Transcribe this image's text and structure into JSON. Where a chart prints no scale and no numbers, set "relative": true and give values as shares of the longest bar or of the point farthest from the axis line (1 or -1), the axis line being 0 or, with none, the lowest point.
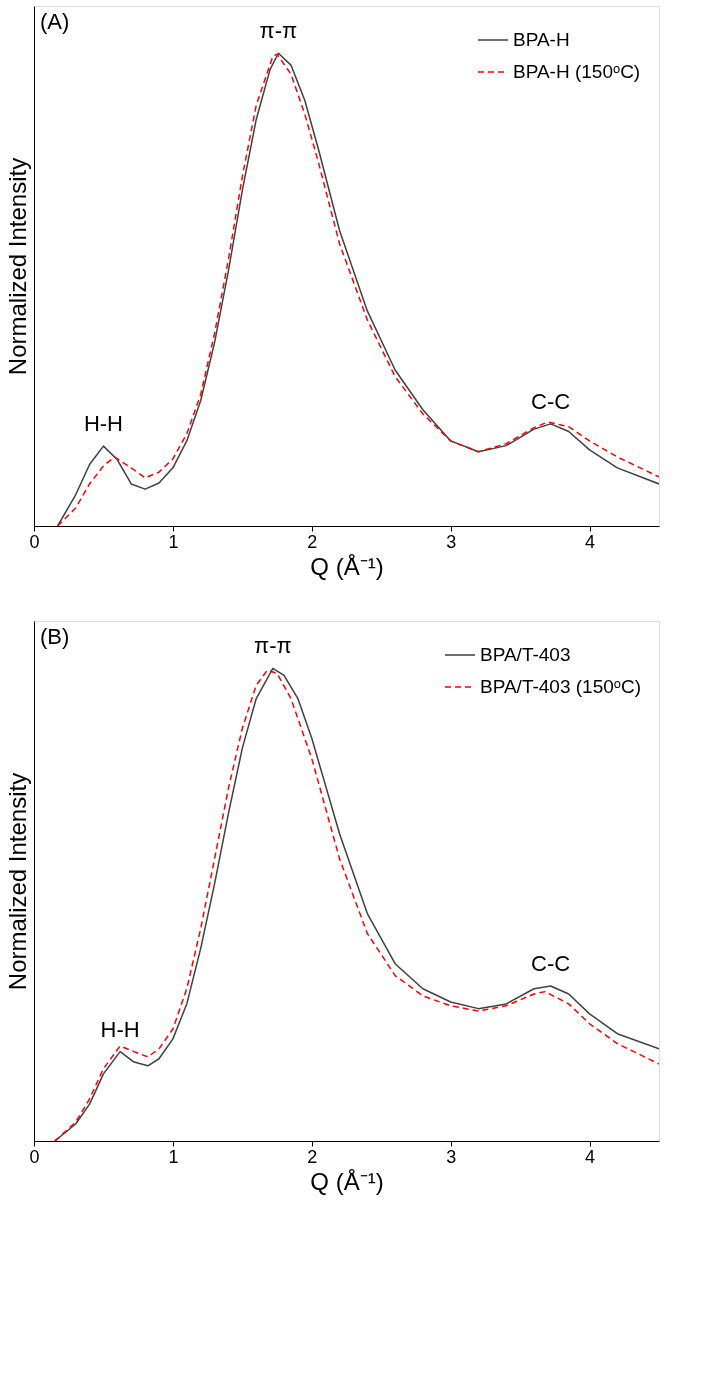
{
  "chart_data": [
    {
      "type": "line",
      "xlabel": "Q (Å⁻¹)",
      "ylabel": "Normalized Intensity",
      "xlim": [
        0,
        4.5
      ],
      "xticks": [
        0,
        1,
        2,
        3,
        4
      ],
      "relative": true,
      "tick_labels": "x",
      "grid": false,
      "legend": "top right",
      "annotations": [
        "(A)",
        {
          "text": "π-π",
          "x": 1.76,
          "y": 1.0
        },
        {
          "text": "H-H",
          "x": 0.5,
          "y": 0.169
        },
        {
          "text": "C-C",
          "x": 3.72,
          "y": 0.216
        }
      ],
      "series": [
        {
          "name": "BPA-H",
          "color": "#404040",
          "line_style": "solid",
          "x": [
            0.17,
            0.3,
            0.4,
            0.5,
            0.6,
            0.7,
            0.8,
            0.9,
            1.0,
            1.1,
            1.2,
            1.3,
            1.4,
            1.5,
            1.6,
            1.7,
            1.76,
            1.85,
            1.95,
            2.05,
            2.2,
            2.4,
            2.6,
            2.8,
            3.0,
            3.2,
            3.4,
            3.6,
            3.72,
            3.85,
            4.0,
            4.2,
            4.5
          ],
          "values": [
            0,
            0.066,
            0.13,
            0.169,
            0.14,
            0.089,
            0.078,
            0.091,
            0.123,
            0.18,
            0.265,
            0.388,
            0.54,
            0.71,
            0.86,
            0.966,
            1.0,
            0.975,
            0.9,
            0.795,
            0.625,
            0.455,
            0.33,
            0.246,
            0.18,
            0.157,
            0.17,
            0.205,
            0.216,
            0.2,
            0.161,
            0.123,
            0.089
          ]
        },
        {
          "name": "BPA-H (150ᵒC)",
          "color": "#ff0000",
          "line_style": "dashed",
          "x": [
            0.17,
            0.3,
            0.4,
            0.5,
            0.58,
            0.7,
            0.8,
            0.9,
            1.0,
            1.1,
            1.2,
            1.3,
            1.4,
            1.5,
            1.6,
            1.72,
            1.75,
            1.85,
            1.95,
            2.05,
            2.2,
            2.4,
            2.6,
            2.8,
            3.0,
            3.2,
            3.4,
            3.6,
            3.7,
            3.85,
            4.0,
            4.2,
            4.5
          ],
          "values": [
            0,
            0.038,
            0.089,
            0.127,
            0.146,
            0.123,
            0.102,
            0.114,
            0.142,
            0.195,
            0.278,
            0.407,
            0.564,
            0.739,
            0.89,
            0.994,
            0.998,
            0.956,
            0.871,
            0.767,
            0.597,
            0.436,
            0.316,
            0.237,
            0.18,
            0.157,
            0.174,
            0.208,
            0.22,
            0.21,
            0.18,
            0.146,
            0.104
          ]
        }
      ]
    },
    {
      "type": "line",
      "xlabel": "Q (Å⁻¹)",
      "ylabel": "Normalized Intensity",
      "xlim": [
        0,
        4.5
      ],
      "xticks": [
        0,
        1,
        2,
        3,
        4
      ],
      "relative": true,
      "tick_labels": "x",
      "grid": false,
      "legend": "top right",
      "annotations": [
        "(B)",
        {
          "text": "π-π",
          "x": 1.72,
          "y": 1.0
        },
        {
          "text": "H-H",
          "x": 0.62,
          "y": 0.189
        },
        {
          "text": "C-C",
          "x": 3.72,
          "y": 0.328
        }
      ],
      "series": [
        {
          "name": "BPA/T-403",
          "color": "#404040",
          "line_style": "solid",
          "x": [
            0.15,
            0.3,
            0.4,
            0.5,
            0.62,
            0.72,
            0.82,
            0.9,
            1.0,
            1.1,
            1.2,
            1.3,
            1.4,
            1.5,
            1.6,
            1.72,
            1.8,
            1.9,
            2.0,
            2.2,
            2.4,
            2.6,
            2.8,
            3.0,
            3.2,
            3.4,
            3.6,
            3.72,
            3.85,
            4.0,
            4.2,
            4.5
          ],
          "values": [
            0,
            0.036,
            0.078,
            0.142,
            0.189,
            0.167,
            0.159,
            0.174,
            0.216,
            0.29,
            0.407,
            0.544,
            0.693,
            0.831,
            0.936,
            1.0,
            0.985,
            0.936,
            0.852,
            0.65,
            0.481,
            0.375,
            0.322,
            0.294,
            0.28,
            0.29,
            0.322,
            0.328,
            0.311,
            0.269,
            0.227,
            0.195
          ]
        },
        {
          "name": "BPA/T-403 (150ᵒC)",
          "color": "#ff0000",
          "line_style": "dashed",
          "x": [
            0.15,
            0.3,
            0.4,
            0.5,
            0.62,
            0.72,
            0.82,
            0.9,
            1.0,
            1.1,
            1.2,
            1.3,
            1.4,
            1.5,
            1.6,
            1.68,
            1.75,
            1.85,
            2.0,
            2.2,
            2.4,
            2.6,
            2.8,
            3.0,
            3.2,
            3.4,
            3.6,
            3.68,
            3.85,
            4.0,
            4.2,
            4.5
          ],
          "values": [
            0,
            0.04,
            0.089,
            0.153,
            0.201,
            0.189,
            0.178,
            0.195,
            0.237,
            0.322,
            0.449,
            0.597,
            0.746,
            0.873,
            0.964,
            0.996,
            0.989,
            0.936,
            0.809,
            0.597,
            0.439,
            0.35,
            0.307,
            0.286,
            0.275,
            0.286,
            0.311,
            0.316,
            0.29,
            0.248,
            0.206,
            0.163
          ]
        }
      ]
    }
  ]
}
